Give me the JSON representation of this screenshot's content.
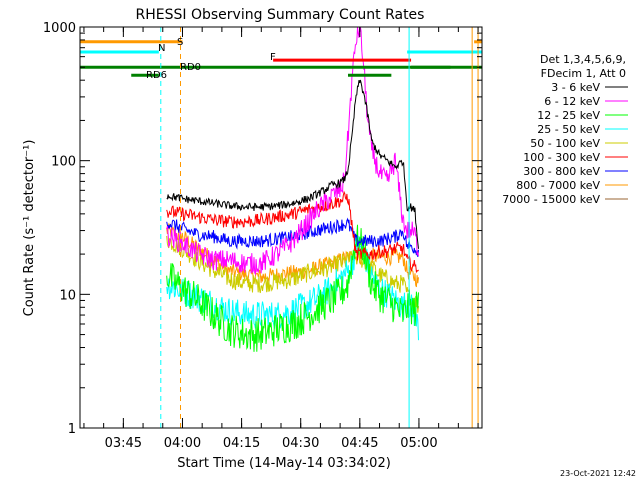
{
  "chart_data": {
    "type": "line",
    "title": "RHESSI Observing Summary Count Rates",
    "xlabel": "Start Time (14-May-14 03:34:02)",
    "ylabel": "Count Rate (s⁻¹ detector⁻¹)",
    "yscale": "log",
    "ylim": [
      1,
      1000
    ],
    "xlim_min": [
      0,
      102
    ],
    "x_unit": "minutes after 03:34:02",
    "yticks": [
      {
        "value": 1,
        "label": "1"
      },
      {
        "value": 10,
        "label": "10"
      },
      {
        "value": 100,
        "label": "100"
      },
      {
        "value": 1000,
        "label": "1000"
      }
    ],
    "xticks": [
      {
        "value": 11,
        "label": "03:45"
      },
      {
        "value": 26,
        "label": "04:00"
      },
      {
        "value": 41,
        "label": "04:15"
      },
      {
        "value": 56,
        "label": "04:30"
      },
      {
        "value": 71,
        "label": "04:45"
      },
      {
        "value": 86,
        "label": "05:00"
      }
    ],
    "legend": {
      "placement": "right",
      "header": [
        "Det 1,3,4,5,6,9,",
        "FDecim 1, Att 0"
      ],
      "entries": [
        {
          "label": "3 - 6 keV",
          "color": "#000000"
        },
        {
          "label": "6 - 12 keV",
          "color": "#ff00ff"
        },
        {
          "label": "12 - 25 keV",
          "color": "#00ff00"
        },
        {
          "label": "25 - 50 keV",
          "color": "#00ffff"
        },
        {
          "label": "50 - 100 keV",
          "color": "#cccc00"
        },
        {
          "label": "100 - 300 keV",
          "color": "#ff0000"
        },
        {
          "label": "300 - 800 keV",
          "color": "#0000ff"
        },
        {
          "label": "800 - 7000 keV",
          "color": "#ff9900"
        },
        {
          "label": "7000 - 15000 keV",
          "color": "#996633"
        }
      ]
    },
    "series": [
      {
        "name": "3 - 6 keV",
        "color": "#000000",
        "x": [
          22,
          26,
          30,
          34,
          38,
          42,
          46,
          50,
          54,
          58,
          62,
          64,
          66,
          67,
          68,
          69,
          70,
          71,
          72,
          73,
          74,
          76,
          78,
          80,
          82,
          83,
          84,
          85,
          86
        ],
        "y": [
          55,
          52,
          50,
          48,
          46,
          45,
          45,
          46,
          48,
          52,
          60,
          66,
          68,
          72,
          85,
          150,
          300,
          400,
          320,
          220,
          140,
          110,
          100,
          90,
          100,
          45,
          45,
          42,
          20
        ]
      },
      {
        "name": "6 - 12 keV",
        "color": "#ff00ff",
        "x": [
          22,
          26,
          30,
          34,
          38,
          42,
          46,
          50,
          54,
          58,
          60,
          62,
          64,
          66,
          67,
          68,
          69,
          70,
          71,
          72,
          73,
          74,
          76,
          78,
          80,
          82,
          83,
          84,
          85,
          86
        ],
        "y": [
          28,
          24,
          20,
          18,
          18,
          17,
          17,
          20,
          25,
          35,
          42,
          48,
          55,
          60,
          70,
          150,
          400,
          800,
          1000,
          500,
          200,
          120,
          80,
          70,
          100,
          35,
          30,
          30,
          28,
          20
        ]
      },
      {
        "name": "12 - 25 keV",
        "color": "#00ff00",
        "x": [
          22,
          26,
          30,
          34,
          38,
          42,
          46,
          50,
          54,
          58,
          62,
          66,
          68,
          69,
          70,
          71,
          72,
          73,
          74,
          76,
          78,
          80,
          82,
          83,
          84,
          85,
          86
        ],
        "y": [
          14,
          11,
          9,
          7,
          5.5,
          5,
          5,
          5.5,
          6,
          7,
          8.5,
          10,
          12,
          18,
          26,
          24,
          22,
          16,
          12,
          10,
          9,
          8,
          7,
          8,
          8,
          7.5,
          9
        ]
      },
      {
        "name": "25 - 50 keV",
        "color": "#00ffff",
        "x": [
          22,
          26,
          30,
          34,
          38,
          42,
          46,
          50,
          54,
          58,
          62,
          66,
          68,
          69,
          70,
          71,
          72,
          73,
          74,
          76,
          78,
          80,
          82,
          83,
          84,
          85,
          86
        ],
        "y": [
          12,
          10.5,
          9.5,
          8.5,
          7.5,
          7,
          7,
          7,
          7.5,
          8.5,
          10,
          13,
          15,
          17,
          22,
          23,
          20,
          17,
          14,
          11,
          10,
          9,
          8,
          9,
          8,
          7,
          5.5
        ]
      },
      {
        "name": "50 - 100 keV",
        "color": "#cccc00",
        "x": [
          22,
          26,
          30,
          34,
          38,
          42,
          46,
          50,
          54,
          58,
          62,
          66,
          68,
          70,
          71,
          72,
          73,
          74,
          76,
          78,
          80,
          82,
          83,
          84,
          85,
          86
        ],
        "y": [
          26,
          22,
          18,
          15,
          13,
          12,
          12,
          12.5,
          13,
          14.5,
          15.5,
          17,
          18,
          19,
          18.5,
          18,
          17,
          16,
          14,
          13,
          12,
          12,
          10,
          9.5,
          9,
          8
        ]
      },
      {
        "name": "100 - 300 keV",
        "color": "#ff0000",
        "x": [
          22,
          26,
          30,
          34,
          38,
          42,
          46,
          50,
          54,
          58,
          62,
          66,
          68,
          70,
          72,
          74,
          76,
          78,
          80,
          82,
          83,
          84,
          85,
          86
        ],
        "y": [
          42,
          40,
          38,
          36,
          35,
          35,
          36,
          38,
          40,
          43,
          46,
          50,
          54,
          20,
          20,
          20,
          21,
          21,
          22,
          22,
          18,
          17,
          16,
          16
        ]
      },
      {
        "name": "300 - 800 keV",
        "color": "#0000ff",
        "x": [
          22,
          26,
          30,
          34,
          38,
          42,
          46,
          50,
          54,
          58,
          62,
          66,
          68,
          70,
          72,
          74,
          76,
          78,
          80,
          82,
          83,
          84,
          85,
          86
        ],
        "y": [
          35,
          31,
          28,
          27,
          25,
          25,
          25,
          26,
          27,
          29,
          31,
          33,
          34,
          25,
          25,
          25,
          25,
          26,
          27,
          30,
          23,
          23,
          22,
          21
        ]
      },
      {
        "name": "800 - 7000 keV",
        "color": "#ff9900",
        "x": [
          22,
          26,
          30,
          34,
          38,
          42,
          46,
          50,
          54,
          58,
          62,
          66,
          68,
          70,
          72,
          74,
          76,
          78,
          80,
          82,
          83,
          84,
          85,
          86
        ],
        "y": [
          30,
          27,
          22,
          18,
          15,
          14,
          13.5,
          14,
          14.5,
          15,
          16.5,
          18,
          19,
          19,
          19,
          19.5,
          19,
          19,
          19,
          19,
          15,
          14,
          13.5,
          12
        ]
      }
    ],
    "annotations": [
      {
        "label": "S",
        "color": "#ff9900"
      },
      {
        "label": "N",
        "color": "#00ffff"
      },
      {
        "label": "RD0",
        "color": "#008000"
      },
      {
        "label": "RD6",
        "color": "#008000"
      },
      {
        "label": "F",
        "color": "#ff0000"
      }
    ],
    "bars": [
      {
        "name": "S",
        "color": "#ff9900",
        "y": 775,
        "spans": [
          [
            0,
            26
          ],
          [
            100,
            102
          ]
        ]
      },
      {
        "name": "N",
        "color": "#00ffff",
        "y": 650,
        "spans": [
          [
            0,
            20
          ],
          [
            83,
            102
          ]
        ]
      },
      {
        "name": "F",
        "color": "#ff0000",
        "y": 565,
        "spans": [
          [
            49,
            84
          ]
        ]
      },
      {
        "name": "RD",
        "color": "#008000",
        "y": 500,
        "spans": [
          [
            0,
            94
          ],
          [
            84,
            102
          ]
        ]
      }
    ],
    "vlines": [
      {
        "x": 0,
        "color": "#00ffff",
        "style": "solid"
      },
      {
        "x": 20.5,
        "color": "#00ffff",
        "style": "dashed"
      },
      {
        "x": 25.5,
        "color": "#ff9900",
        "style": "dashed"
      },
      {
        "x": 83.5,
        "color": "#00ffff",
        "style": "solid"
      },
      {
        "x": 99.5,
        "color": "#ff9900",
        "style": "solid"
      },
      {
        "x": 101,
        "color": "#ff9900",
        "style": "solid"
      }
    ]
  },
  "footer": {
    "timestamp": "23-Oct-2021 12:42"
  }
}
